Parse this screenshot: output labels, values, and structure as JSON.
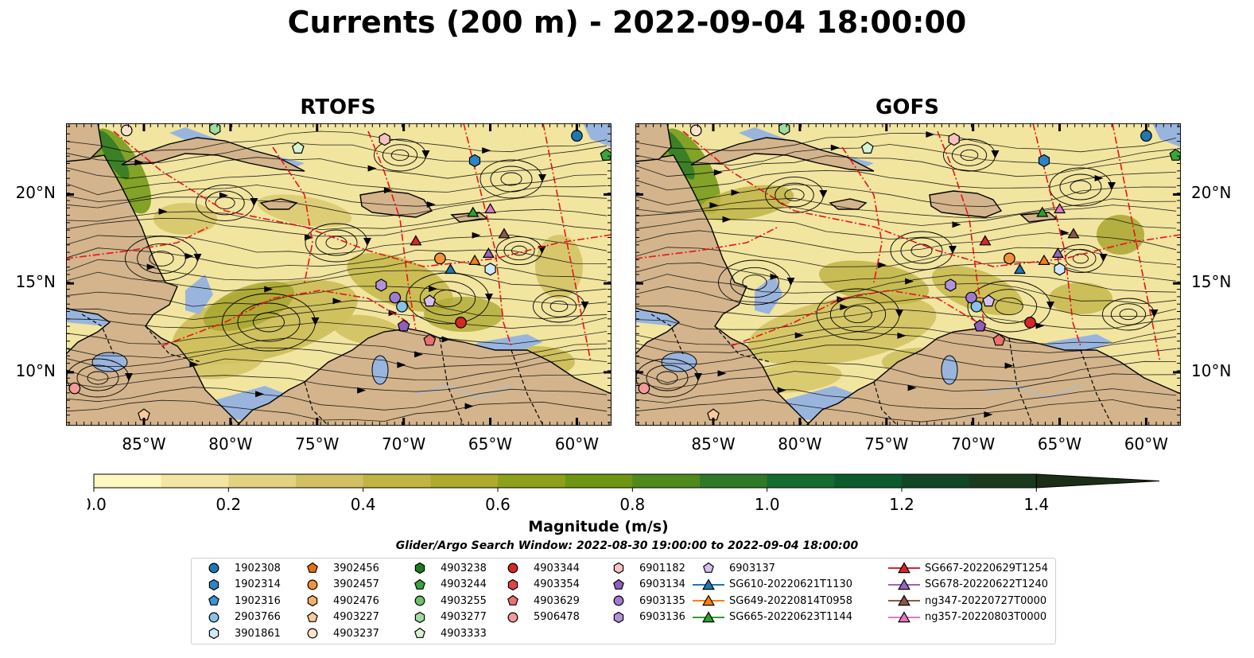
{
  "title": "Currents (200 m) - 2022-09-04 18:00:00",
  "panels": [
    {
      "name": "RTOFS"
    },
    {
      "name": "GOFS"
    }
  ],
  "axes": {
    "lon_ticks": [
      "85°W",
      "80°W",
      "75°W",
      "70°W",
      "65°W",
      "60°W"
    ],
    "lon_values": [
      -85,
      -80,
      -75,
      -70,
      -65,
      -60
    ],
    "lat_ticks": [
      "20°N",
      "15°N",
      "10°N"
    ],
    "lat_values": [
      20,
      15,
      10
    ],
    "lon_range": [
      -89.5,
      -58.0
    ],
    "lat_range": [
      7.0,
      24.0
    ]
  },
  "colorbar": {
    "label": "Magnitude (m/s)",
    "ticks": [
      "0.0",
      "0.2",
      "0.4",
      "0.6",
      "0.8",
      "1.0",
      "1.2",
      "1.4"
    ],
    "range": [
      0.0,
      1.5
    ],
    "extend": "max",
    "colors": [
      "#fdf7c0",
      "#f2e6a0",
      "#e3d282",
      "#d3c062",
      "#c2b443",
      "#aeaa2a",
      "#8ea019",
      "#6f9613",
      "#4f8a1c",
      "#2f7a26",
      "#146b30",
      "#0d5a2c",
      "#124726",
      "#1a3a1e",
      "#1d2e16"
    ]
  },
  "search_window": "Glider/Argo Search Window: 2022-08-30 19:00:00 to 2022-09-04 18:00:00",
  "legend": {
    "columns": [
      [
        {
          "label": "1902308",
          "marker": "circle",
          "color": "#1f77b4"
        },
        {
          "label": "1902314",
          "marker": "hexagon",
          "color": "#2b85c2"
        },
        {
          "label": "1902316",
          "marker": "pentagon",
          "color": "#3a95d6"
        },
        {
          "label": "2903766",
          "marker": "circle",
          "color": "#86c3ec"
        },
        {
          "label": "3901861",
          "marker": "hexagon",
          "color": "#cfe8fa"
        }
      ],
      [
        {
          "label": "3902456",
          "marker": "pentagon",
          "color": "#e8710a"
        },
        {
          "label": "3902457",
          "marker": "circle",
          "color": "#f5913a"
        },
        {
          "label": "4902476",
          "marker": "hexagon",
          "color": "#f9ae6a"
        },
        {
          "label": "4903227",
          "marker": "pentagon",
          "color": "#fcc99a"
        },
        {
          "label": "4903237",
          "marker": "circle",
          "color": "#fde4c8"
        }
      ],
      [
        {
          "label": "4903238",
          "marker": "hexagon",
          "color": "#1d7a1d"
        },
        {
          "label": "4903244",
          "marker": "pentagon",
          "color": "#3aa53a"
        },
        {
          "label": "4903255",
          "marker": "circle",
          "color": "#69c469"
        },
        {
          "label": "4903277",
          "marker": "hexagon",
          "color": "#9fdc9f"
        },
        {
          "label": "4903333",
          "marker": "pentagon",
          "color": "#d6f3d2"
        }
      ],
      [
        {
          "label": "4903344",
          "marker": "circle",
          "color": "#d62728"
        },
        {
          "label": "4903354",
          "marker": "hexagon",
          "color": "#e04346"
        },
        {
          "label": "4903629",
          "marker": "pentagon",
          "color": "#ec6f6f"
        },
        {
          "label": "5906478",
          "marker": "circle",
          "color": "#f49a97"
        }
      ],
      [
        {
          "label": "6901182",
          "marker": "hexagon",
          "color": "#f7c2c0"
        },
        {
          "label": "6903134",
          "marker": "pentagon",
          "color": "#8e5fbf"
        },
        {
          "label": "6903135",
          "marker": "circle",
          "color": "#a07ad0"
        },
        {
          "label": "6903136",
          "marker": "hexagon",
          "color": "#b392dc"
        }
      ],
      [
        {
          "label": "6903137",
          "marker": "pentagon",
          "color": "#d4c0ee"
        },
        {
          "label": "SG610-20220621T1130",
          "marker": "triangle",
          "color": "#1f77b4",
          "line": true
        },
        {
          "label": "SG649-20220814T0958",
          "marker": "triangle",
          "color": "#ff7f0e",
          "line": true
        },
        {
          "label": "SG665-20220623T1144",
          "marker": "triangle",
          "color": "#2ca02c",
          "line": true
        }
      ],
      [
        {
          "label": "SG667-20220629T1254",
          "marker": "triangle",
          "color": "#d62728",
          "line": true
        },
        {
          "label": "SG678-20220622T1240",
          "marker": "triangle",
          "color": "#9467bd",
          "line": true
        },
        {
          "label": "ng347-20220727T0000",
          "marker": "triangle",
          "color": "#8c564b",
          "line": true
        },
        {
          "label": "ng357-20220803T0000",
          "marker": "triangle",
          "color": "#e377c2",
          "line": true
        }
      ]
    ]
  },
  "markers": {
    "RTOFS": [
      {
        "lon": -60.0,
        "lat": 23.3,
        "marker": "circle",
        "color": "#1f77b4"
      },
      {
        "lon": -58.3,
        "lat": 22.2,
        "marker": "pentagon",
        "color": "#3aa53a"
      },
      {
        "lon": -65.9,
        "lat": 21.9,
        "marker": "hexagon",
        "color": "#2b85c2"
      },
      {
        "lon": -71.1,
        "lat": 23.1,
        "marker": "hexagon",
        "color": "#f7c2c0"
      },
      {
        "lon": -76.1,
        "lat": 22.6,
        "marker": "pentagon",
        "color": "#d6f3d2"
      },
      {
        "lon": -80.9,
        "lat": 23.7,
        "marker": "hexagon",
        "color": "#9fdc9f"
      },
      {
        "lon": -86.0,
        "lat": 23.6,
        "marker": "circle",
        "color": "#fde4c8"
      },
      {
        "lon": -89.0,
        "lat": 9.1,
        "marker": "circle",
        "color": "#f49a97"
      },
      {
        "lon": -85.0,
        "lat": 7.6,
        "marker": "pentagon",
        "color": "#fcc99a"
      },
      {
        "lon": -71.3,
        "lat": 14.9,
        "marker": "hexagon",
        "color": "#b392dc"
      },
      {
        "lon": -70.5,
        "lat": 14.2,
        "marker": "circle",
        "color": "#a07ad0"
      },
      {
        "lon": -70.1,
        "lat": 13.7,
        "marker": "circle",
        "color": "#86c3ec"
      },
      {
        "lon": -68.5,
        "lat": 14.0,
        "marker": "pentagon",
        "color": "#d4c0ee"
      },
      {
        "lon": -70.0,
        "lat": 12.6,
        "marker": "pentagon",
        "color": "#8e5fbf"
      },
      {
        "lon": -68.5,
        "lat": 11.8,
        "marker": "pentagon",
        "color": "#ec6f6f"
      },
      {
        "lon": -66.7,
        "lat": 12.8,
        "marker": "circle",
        "color": "#d62728"
      },
      {
        "lon": -67.9,
        "lat": 16.4,
        "marker": "circle",
        "color": "#f5913a"
      },
      {
        "lon": -65.0,
        "lat": 15.8,
        "marker": "hexagon",
        "color": "#cfe8fa"
      },
      {
        "lon": -69.3,
        "lat": 17.4,
        "marker": "triangle",
        "color": "#d62728"
      },
      {
        "lon": -66.0,
        "lat": 19.0,
        "marker": "triangle",
        "color": "#2ca02c"
      },
      {
        "lon": -65.0,
        "lat": 19.2,
        "marker": "triangle",
        "color": "#e377c2"
      },
      {
        "lon": -64.2,
        "lat": 17.8,
        "marker": "triangle",
        "color": "#8c564b"
      },
      {
        "lon": -65.1,
        "lat": 16.7,
        "marker": "triangle",
        "color": "#9467bd"
      },
      {
        "lon": -65.9,
        "lat": 16.3,
        "marker": "triangle",
        "color": "#ff7f0e"
      },
      {
        "lon": -67.3,
        "lat": 15.8,
        "marker": "triangle",
        "color": "#1f77b4"
      }
    ],
    "GOFS": [
      {
        "lon": -60.0,
        "lat": 23.3,
        "marker": "circle",
        "color": "#1f77b4"
      },
      {
        "lon": -58.3,
        "lat": 22.2,
        "marker": "pentagon",
        "color": "#3aa53a"
      },
      {
        "lon": -65.9,
        "lat": 21.9,
        "marker": "hexagon",
        "color": "#2b85c2"
      },
      {
        "lon": -71.1,
        "lat": 23.1,
        "marker": "hexagon",
        "color": "#f7c2c0"
      },
      {
        "lon": -76.1,
        "lat": 22.6,
        "marker": "pentagon",
        "color": "#d6f3d2"
      },
      {
        "lon": -80.9,
        "lat": 23.7,
        "marker": "hexagon",
        "color": "#9fdc9f"
      },
      {
        "lon": -86.0,
        "lat": 23.6,
        "marker": "circle",
        "color": "#fde4c8"
      },
      {
        "lon": -89.0,
        "lat": 9.1,
        "marker": "circle",
        "color": "#f49a97"
      },
      {
        "lon": -85.0,
        "lat": 7.6,
        "marker": "pentagon",
        "color": "#fcc99a"
      },
      {
        "lon": -71.3,
        "lat": 14.9,
        "marker": "hexagon",
        "color": "#b392dc"
      },
      {
        "lon": -70.1,
        "lat": 14.2,
        "marker": "circle",
        "color": "#a07ad0"
      },
      {
        "lon": -69.8,
        "lat": 13.7,
        "marker": "circle",
        "color": "#86c3ec"
      },
      {
        "lon": -69.1,
        "lat": 14.0,
        "marker": "pentagon",
        "color": "#d4c0ee"
      },
      {
        "lon": -69.6,
        "lat": 12.6,
        "marker": "pentagon",
        "color": "#8e5fbf"
      },
      {
        "lon": -68.5,
        "lat": 11.8,
        "marker": "pentagon",
        "color": "#ec6f6f"
      },
      {
        "lon": -66.7,
        "lat": 12.8,
        "marker": "circle",
        "color": "#d62728"
      },
      {
        "lon": -67.9,
        "lat": 16.4,
        "marker": "circle",
        "color": "#f5913a"
      },
      {
        "lon": -65.0,
        "lat": 15.8,
        "marker": "hexagon",
        "color": "#cfe8fa"
      },
      {
        "lon": -69.3,
        "lat": 17.4,
        "marker": "triangle",
        "color": "#d62728"
      },
      {
        "lon": -66.0,
        "lat": 19.0,
        "marker": "triangle",
        "color": "#2ca02c"
      },
      {
        "lon": -65.0,
        "lat": 19.2,
        "marker": "triangle",
        "color": "#e377c2"
      },
      {
        "lon": -64.2,
        "lat": 17.8,
        "marker": "triangle",
        "color": "#8c564b"
      },
      {
        "lon": -65.1,
        "lat": 16.7,
        "marker": "triangle",
        "color": "#9467bd"
      },
      {
        "lon": -65.9,
        "lat": 16.3,
        "marker": "triangle",
        "color": "#ff7f0e"
      },
      {
        "lon": -67.3,
        "lat": 15.8,
        "marker": "triangle",
        "color": "#1f77b4"
      }
    ]
  }
}
